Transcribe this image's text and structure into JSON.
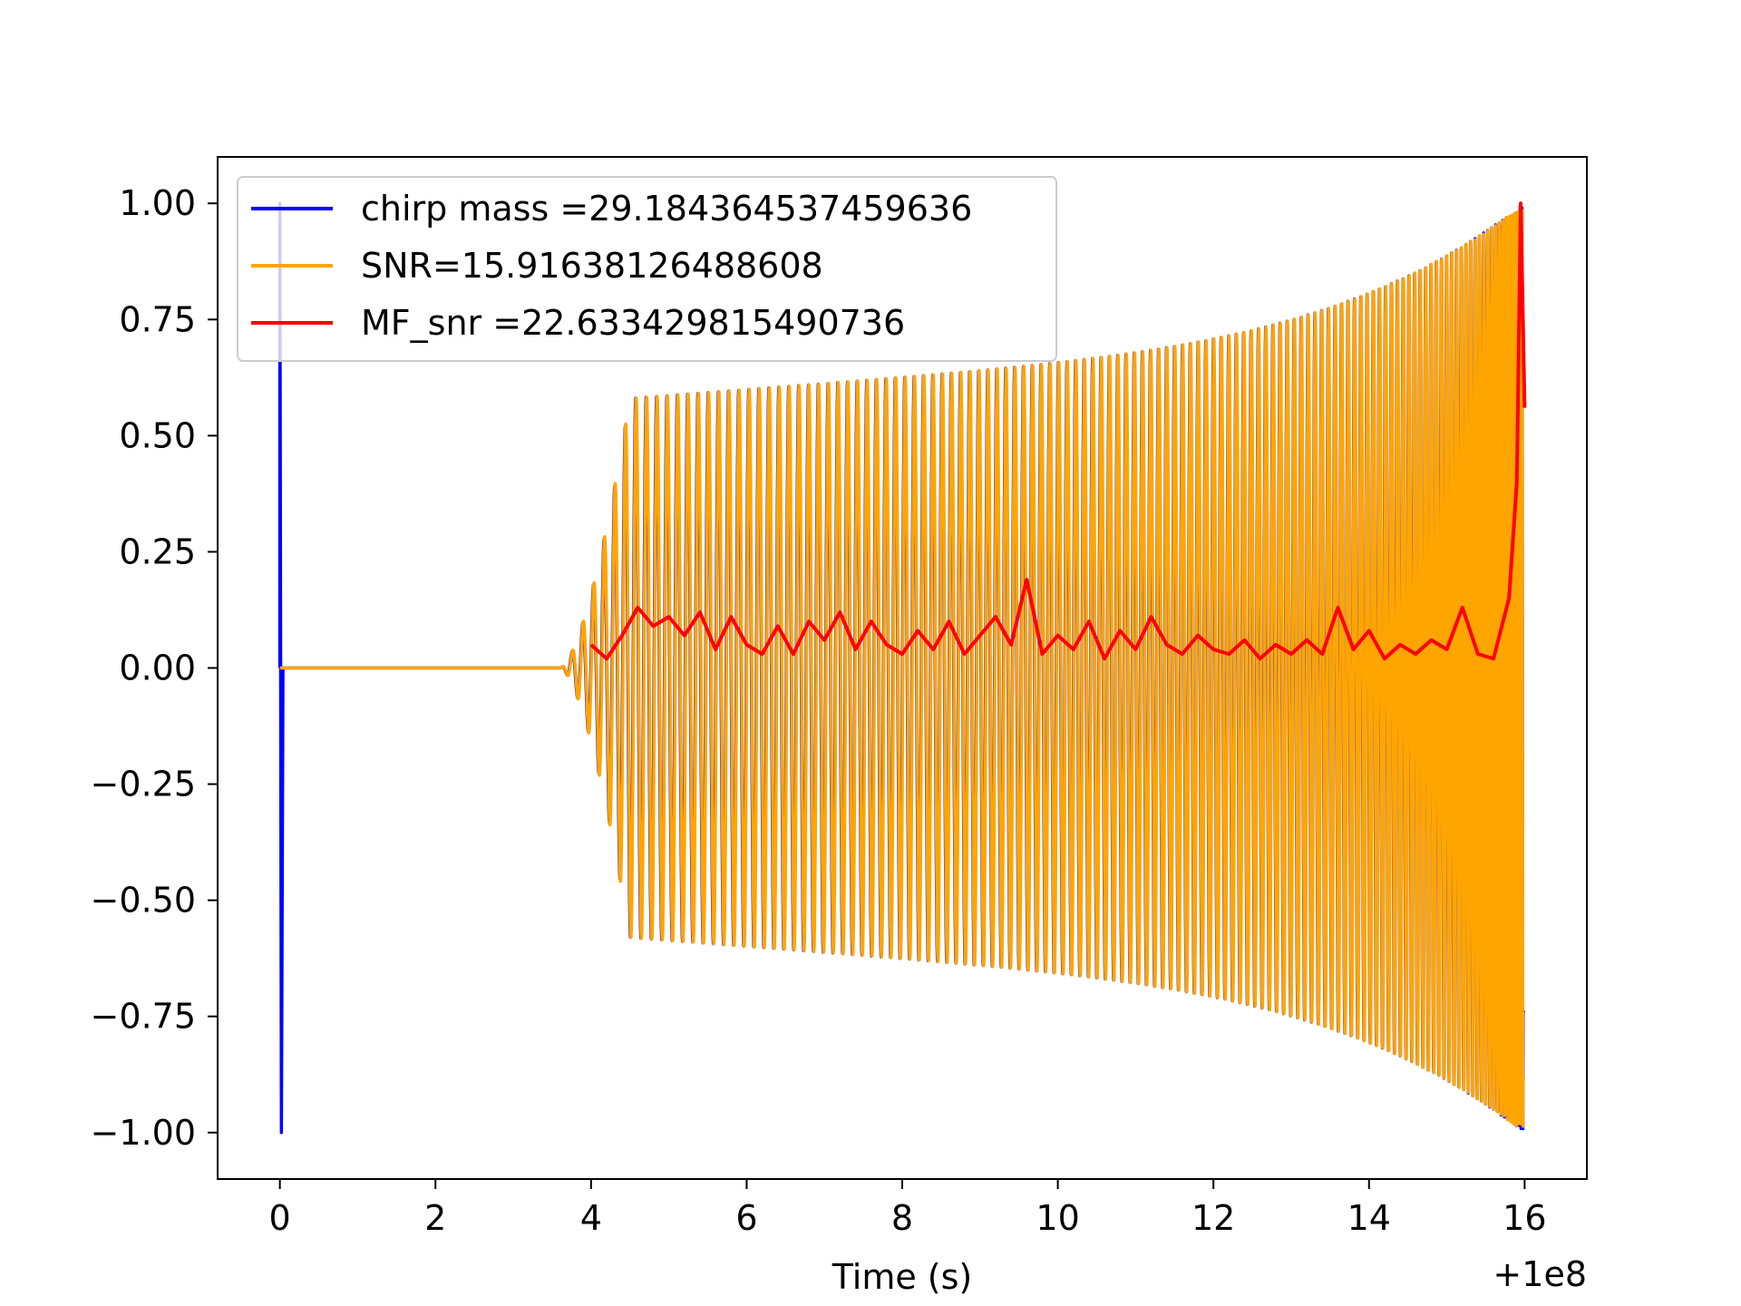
{
  "chart_data": {
    "type": "line",
    "title": "",
    "xlabel": "Time (s)",
    "ylabel": "",
    "x_offset_label": "+1e8",
    "xlim": [
      -0.8,
      16.8
    ],
    "ylim": [
      -1.1,
      1.1
    ],
    "x_ticks": [
      0,
      2,
      4,
      6,
      8,
      10,
      12,
      14,
      16
    ],
    "x_tick_labels": [
      "0",
      "2",
      "4",
      "6",
      "8",
      "10",
      "12",
      "14",
      "16"
    ],
    "y_ticks": [
      1.0,
      0.75,
      0.5,
      0.25,
      0.0,
      -0.25,
      -0.5,
      -0.75,
      -1.0
    ],
    "y_tick_labels": [
      "1.00",
      "0.75",
      "0.50",
      "0.25",
      "0.00",
      "−0.25",
      "−0.50",
      "−0.75",
      "−1.00"
    ],
    "grid": false,
    "legend_position": "top-left",
    "series": [
      {
        "name": "chirp mass =29.184364537459636",
        "color": "#0000ff",
        "kind": "chirp-template",
        "description_points": {
          "spike_time": 0.0,
          "spike_amplitude": 1.0,
          "signal_start": 3.6,
          "envelope_at_4_5": 0.58,
          "envelope_at_16": 1.0,
          "end_time": 16.0
        }
      },
      {
        "name": "SNR=15.91638126488608",
        "color": "#ffa500",
        "kind": "chirp-signal",
        "description_points": {
          "flat_from": 0.0,
          "signal_start": 3.6,
          "envelope_at_4_5": 0.58,
          "envelope_at_16": 1.0,
          "end_time": 16.0
        }
      },
      {
        "name": "MF_snr =22.633429815490736",
        "color": "#ff0000",
        "kind": "matched-filter",
        "x": [
          4.0,
          4.2,
          4.4,
          4.6,
          4.8,
          5.0,
          5.2,
          5.4,
          5.6,
          5.8,
          6.0,
          6.2,
          6.4,
          6.6,
          6.8,
          7.0,
          7.2,
          7.4,
          7.6,
          7.8,
          8.0,
          8.2,
          8.4,
          8.6,
          8.8,
          9.0,
          9.2,
          9.4,
          9.6,
          9.8,
          10.0,
          10.2,
          10.4,
          10.6,
          10.8,
          11.0,
          11.2,
          11.4,
          11.6,
          11.8,
          12.0,
          12.2,
          12.4,
          12.6,
          12.8,
          13.0,
          13.2,
          13.4,
          13.6,
          13.8,
          14.0,
          14.2,
          14.4,
          14.6,
          14.8,
          15.0,
          15.2,
          15.4,
          15.6,
          15.8,
          15.9,
          15.95,
          16.0
        ],
        "values": [
          0.05,
          0.02,
          0.07,
          0.13,
          0.09,
          0.11,
          0.07,
          0.12,
          0.04,
          0.11,
          0.05,
          0.03,
          0.09,
          0.03,
          0.1,
          0.06,
          0.12,
          0.04,
          0.1,
          0.05,
          0.03,
          0.08,
          0.04,
          0.1,
          0.03,
          0.07,
          0.11,
          0.05,
          0.19,
          0.03,
          0.07,
          0.04,
          0.1,
          0.02,
          0.08,
          0.04,
          0.11,
          0.05,
          0.03,
          0.07,
          0.04,
          0.03,
          0.06,
          0.02,
          0.05,
          0.03,
          0.06,
          0.03,
          0.13,
          0.04,
          0.08,
          0.02,
          0.05,
          0.03,
          0.06,
          0.04,
          0.13,
          0.03,
          0.02,
          0.15,
          0.4,
          1.0,
          0.56
        ]
      }
    ]
  }
}
